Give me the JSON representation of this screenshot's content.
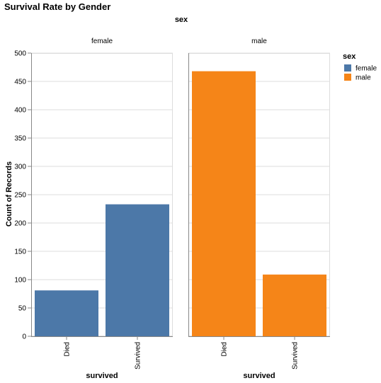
{
  "chart_data": {
    "type": "bar",
    "title": "Survival Rate by Gender",
    "facet_field": "sex",
    "categories": [
      "Died",
      "Survived"
    ],
    "xlabel": "survived",
    "ylabel": "Count of Records",
    "ylim": [
      0,
      500
    ],
    "yticks": [
      0,
      50,
      100,
      150,
      200,
      250,
      300,
      350,
      400,
      450,
      500
    ],
    "grid": true,
    "legend": {
      "title": "sex",
      "position": "top-right",
      "items": [
        {
          "label": "female",
          "color": "#4c78a8"
        },
        {
          "label": "male",
          "color": "#f58518"
        }
      ]
    },
    "series": [
      {
        "name": "female",
        "color": "#4c78a8",
        "values": [
          81,
          233
        ]
      },
      {
        "name": "male",
        "color": "#f58518",
        "values": [
          468,
          109
        ]
      }
    ]
  }
}
